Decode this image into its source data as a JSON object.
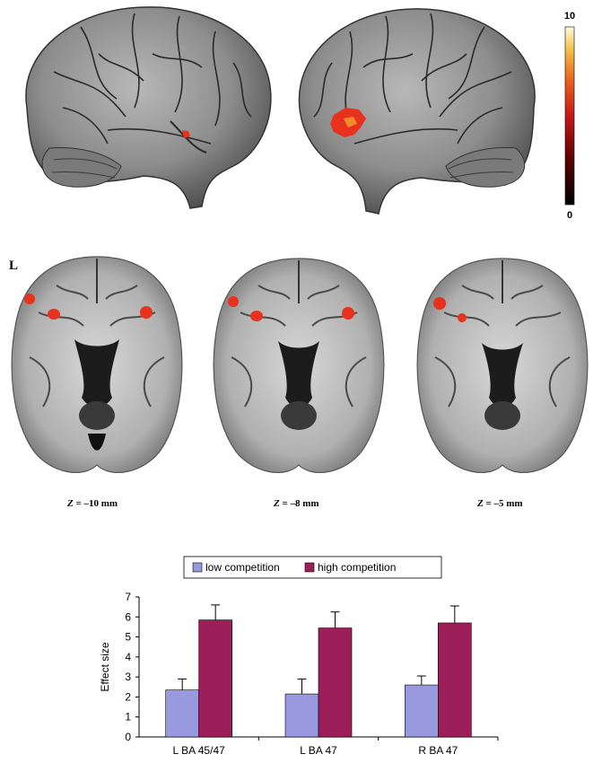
{
  "colorbar": {
    "max_label": "10",
    "min_label": "0",
    "gradient": [
      "#000000",
      "#5a0000",
      "#c41818",
      "#e8641c",
      "#f4c44a",
      "#fffde0"
    ]
  },
  "side_label": "L",
  "slices": [
    {
      "z": "Z",
      "text": " = –10 mm"
    },
    {
      "z": "Z",
      "text": " = –8 mm"
    },
    {
      "z": "Z",
      "text": " = –5 mm"
    }
  ],
  "colors": {
    "low": "#9999e0",
    "high": "#9c1f5a",
    "activation": "#e8321e"
  },
  "chart_data": {
    "type": "bar",
    "categories": [
      "L BA 45/47",
      "L BA 47",
      "R BA 47"
    ],
    "series": [
      {
        "name": "low competition",
        "values": [
          2.35,
          2.15,
          2.6
        ],
        "errors": [
          0.55,
          0.75,
          0.45
        ]
      },
      {
        "name": "high competition",
        "values": [
          5.85,
          5.45,
          5.7
        ],
        "errors": [
          0.75,
          0.8,
          0.85
        ]
      }
    ],
    "ylabel": "Effect size",
    "ylim": [
      0,
      7
    ],
    "yticks": [
      "0",
      "1",
      "2",
      "3",
      "4",
      "5",
      "6",
      "7"
    ],
    "legend": "top"
  }
}
